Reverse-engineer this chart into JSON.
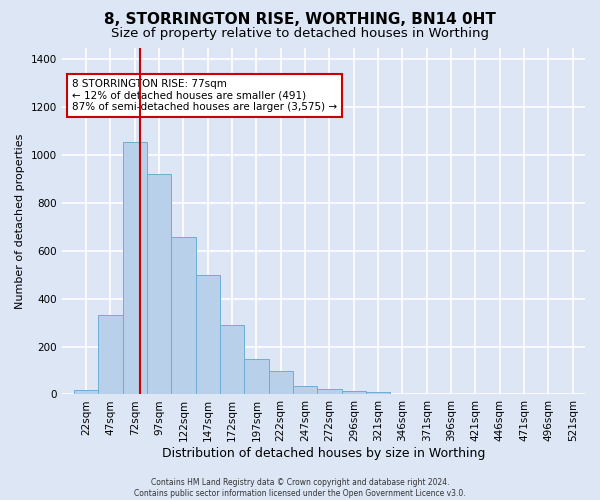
{
  "title": "8, STORRINGTON RISE, WORTHING, BN14 0HT",
  "subtitle": "Size of property relative to detached houses in Worthing",
  "xlabel": "Distribution of detached houses by size in Worthing",
  "ylabel": "Number of detached properties",
  "bar_heights": [
    18,
    330,
    1055,
    920,
    660,
    500,
    290,
    150,
    100,
    37,
    22,
    14,
    10,
    0,
    0,
    0,
    0,
    0,
    0,
    0
  ],
  "bin_labels": [
    "22sqm",
    "47sqm",
    "72sqm",
    "97sqm",
    "122sqm",
    "147sqm",
    "172sqm",
    "197sqm",
    "222sqm",
    "247sqm",
    "272sqm",
    "296sqm",
    "321sqm",
    "346sqm",
    "371sqm",
    "396sqm",
    "421sqm",
    "446sqm",
    "471sqm",
    "496sqm",
    "521sqm"
  ],
  "bar_color": "#b8d0ea",
  "bar_edge_color": "#6baed6",
  "fig_background": "#dce6f5",
  "ax_background": "#dce6f5",
  "grid_color": "#ffffff",
  "annotation_text": "8 STORRINGTON RISE: 77sqm\n← 12% of detached houses are smaller (491)\n87% of semi-detached houses are larger (3,575) →",
  "annotation_box_color": "#ffffff",
  "annotation_box_edge": "#cc0000",
  "vline_color": "#cc0000",
  "vline_x_index": 2,
  "footer_text": "Contains HM Land Registry data © Crown copyright and database right 2024.\nContains public sector information licensed under the Open Government Licence v3.0.",
  "ylim": [
    0,
    1450
  ],
  "yticks": [
    0,
    200,
    400,
    600,
    800,
    1000,
    1200,
    1400
  ],
  "title_fontsize": 11,
  "subtitle_fontsize": 9.5,
  "ylabel_fontsize": 8,
  "xlabel_fontsize": 9,
  "tick_fontsize": 7.5,
  "footer_fontsize": 5.5
}
